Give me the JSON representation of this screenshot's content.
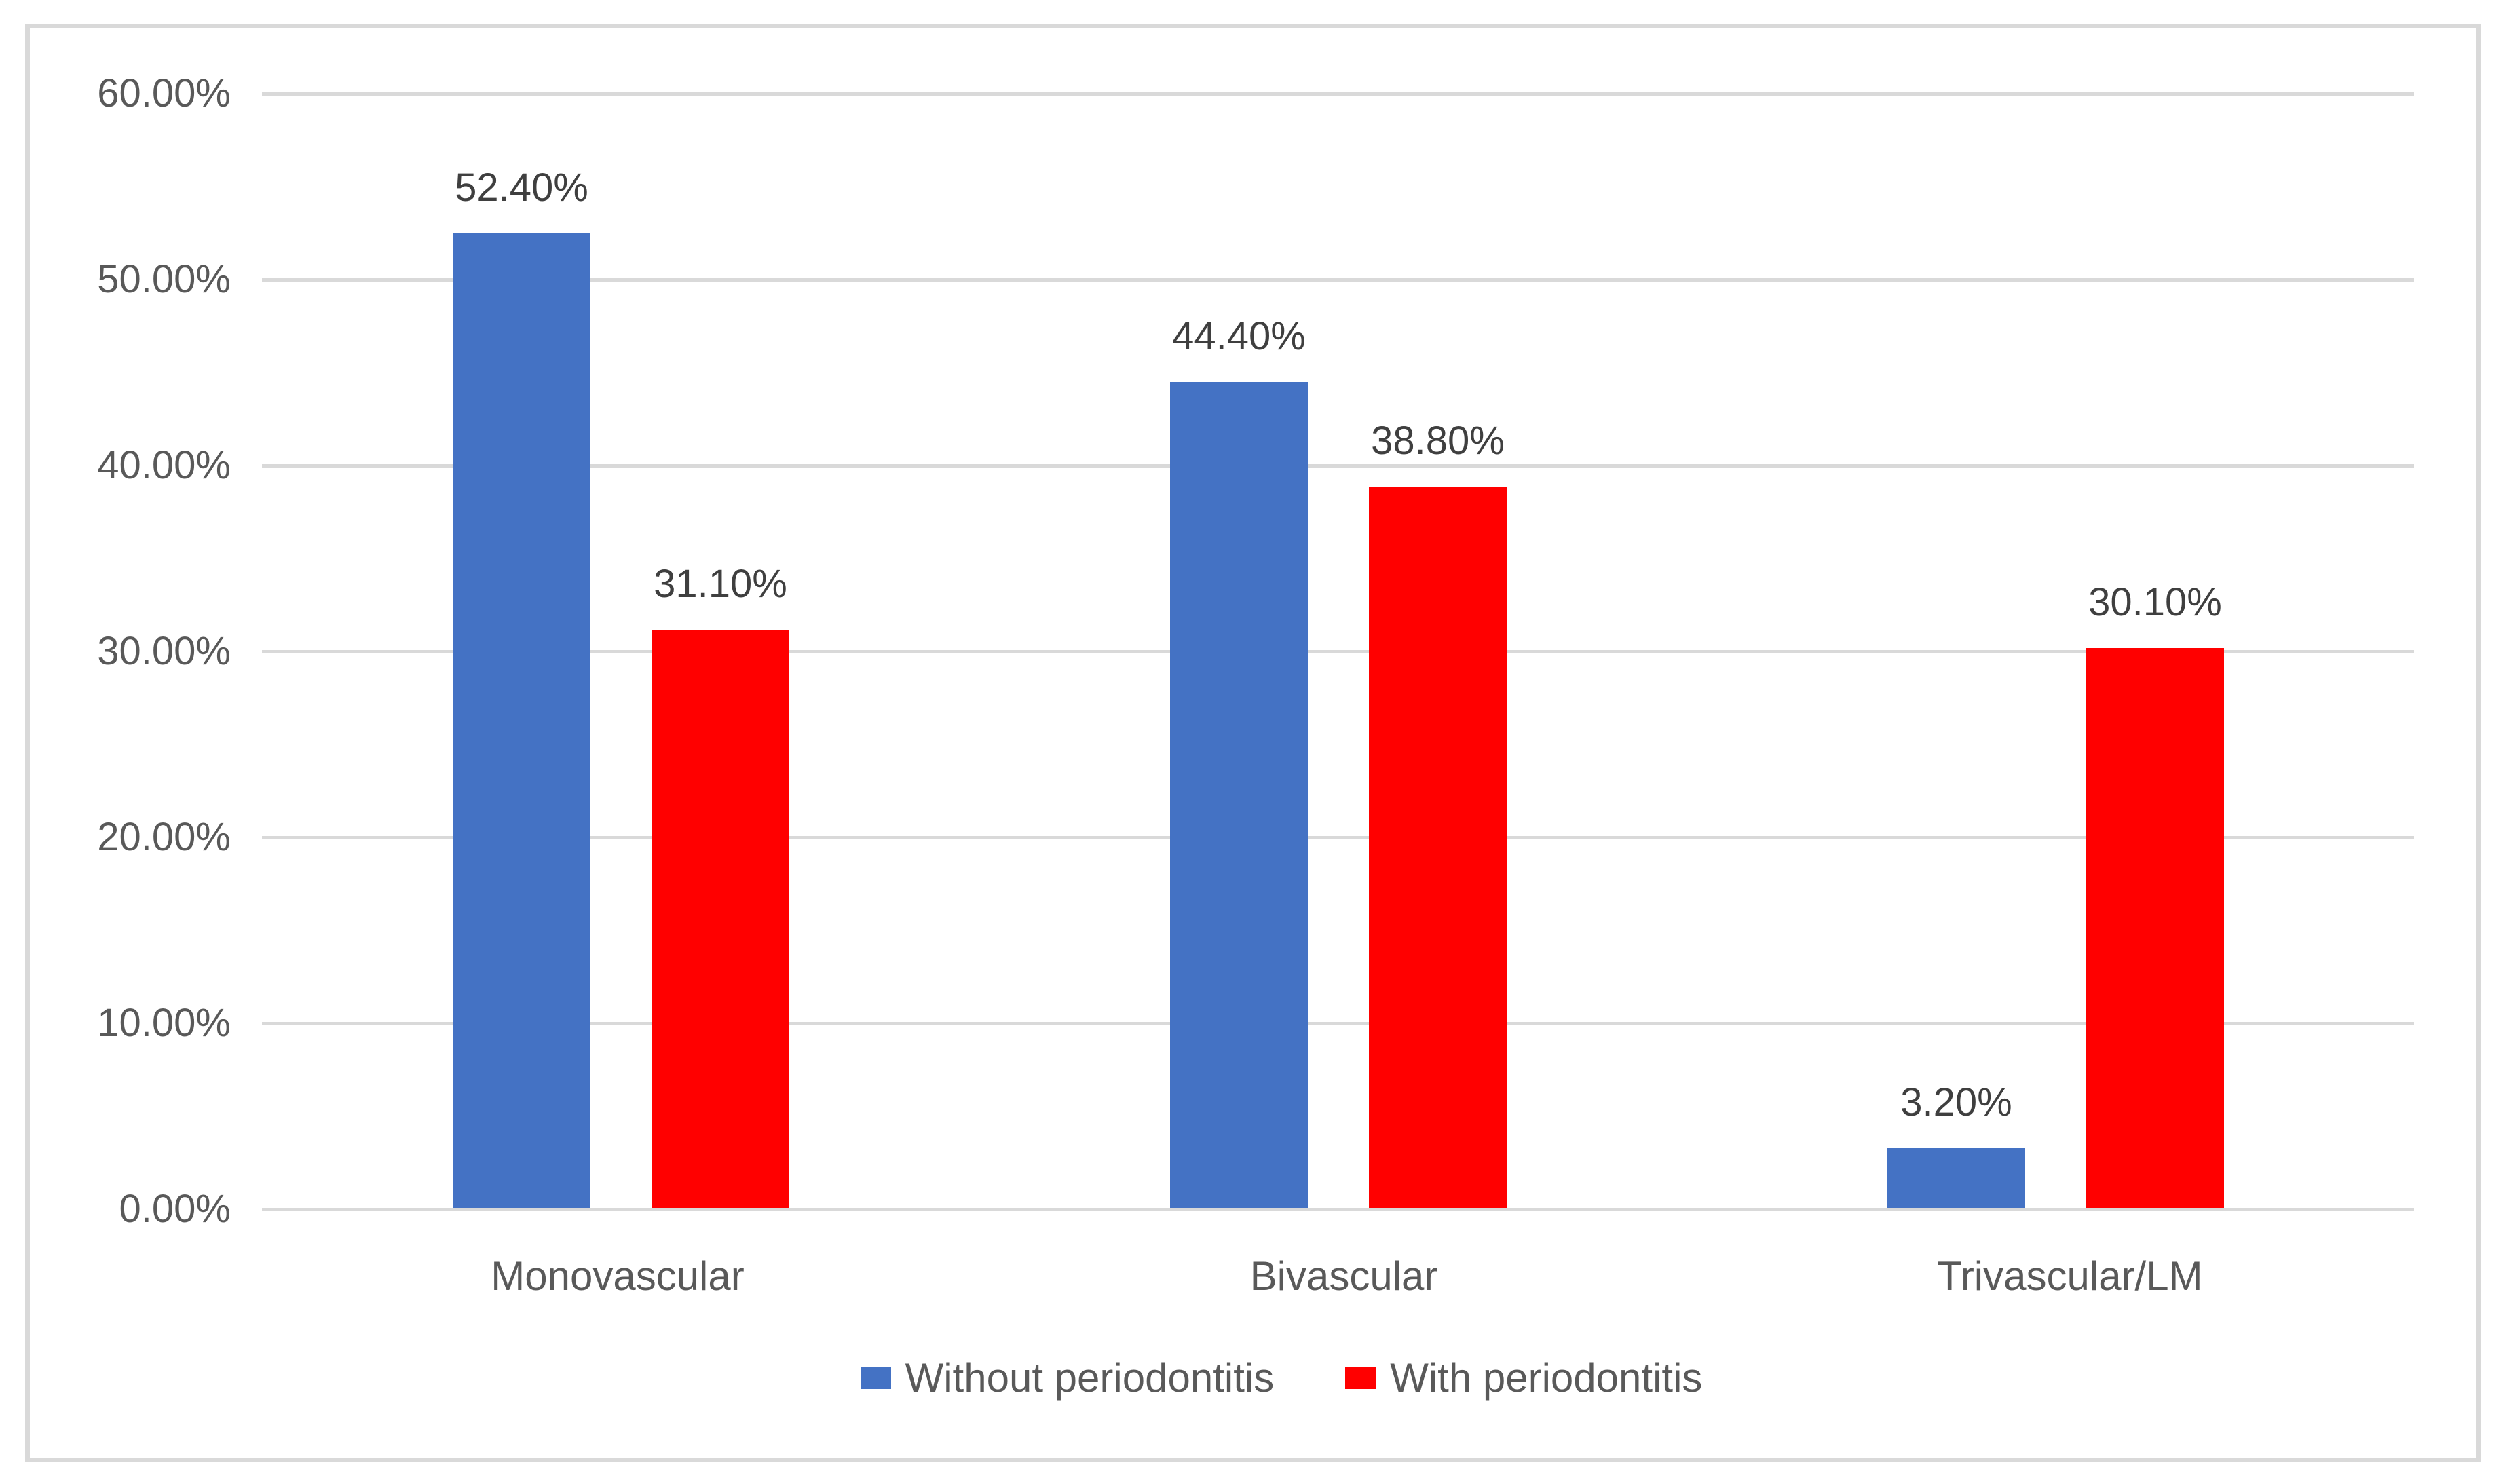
{
  "chart_data": {
    "type": "bar",
    "title": "",
    "xlabel": "",
    "ylabel": "",
    "categories": [
      "Monovascular",
      "Bivascular",
      "Trivascular/LM"
    ],
    "series": [
      {
        "name": "Without periodontitis",
        "color": "#4472C4",
        "values": [
          52.4,
          44.4,
          3.2
        ],
        "data_labels": [
          "52.40%",
          "44.40%",
          "3.20%"
        ]
      },
      {
        "name": "With periodontitis",
        "color": "#FF0000",
        "values": [
          31.1,
          38.8,
          30.1
        ],
        "data_labels": [
          "31.10%",
          "38.80%",
          "30.10%"
        ]
      }
    ],
    "y_axis": {
      "min": 0,
      "max": 60,
      "tick_step": 10,
      "tick_labels": [
        "0.00%",
        "10.00%",
        "20.00%",
        "30.00%",
        "40.00%",
        "50.00%",
        "60.00%"
      ]
    },
    "legend_position": "bottom",
    "grid": "horizontal",
    "gridline_color": "#D9D9D9",
    "border_color": "#D9D9D9",
    "axis_text_color": "#595959",
    "data_label_color": "#3F3F3F"
  }
}
